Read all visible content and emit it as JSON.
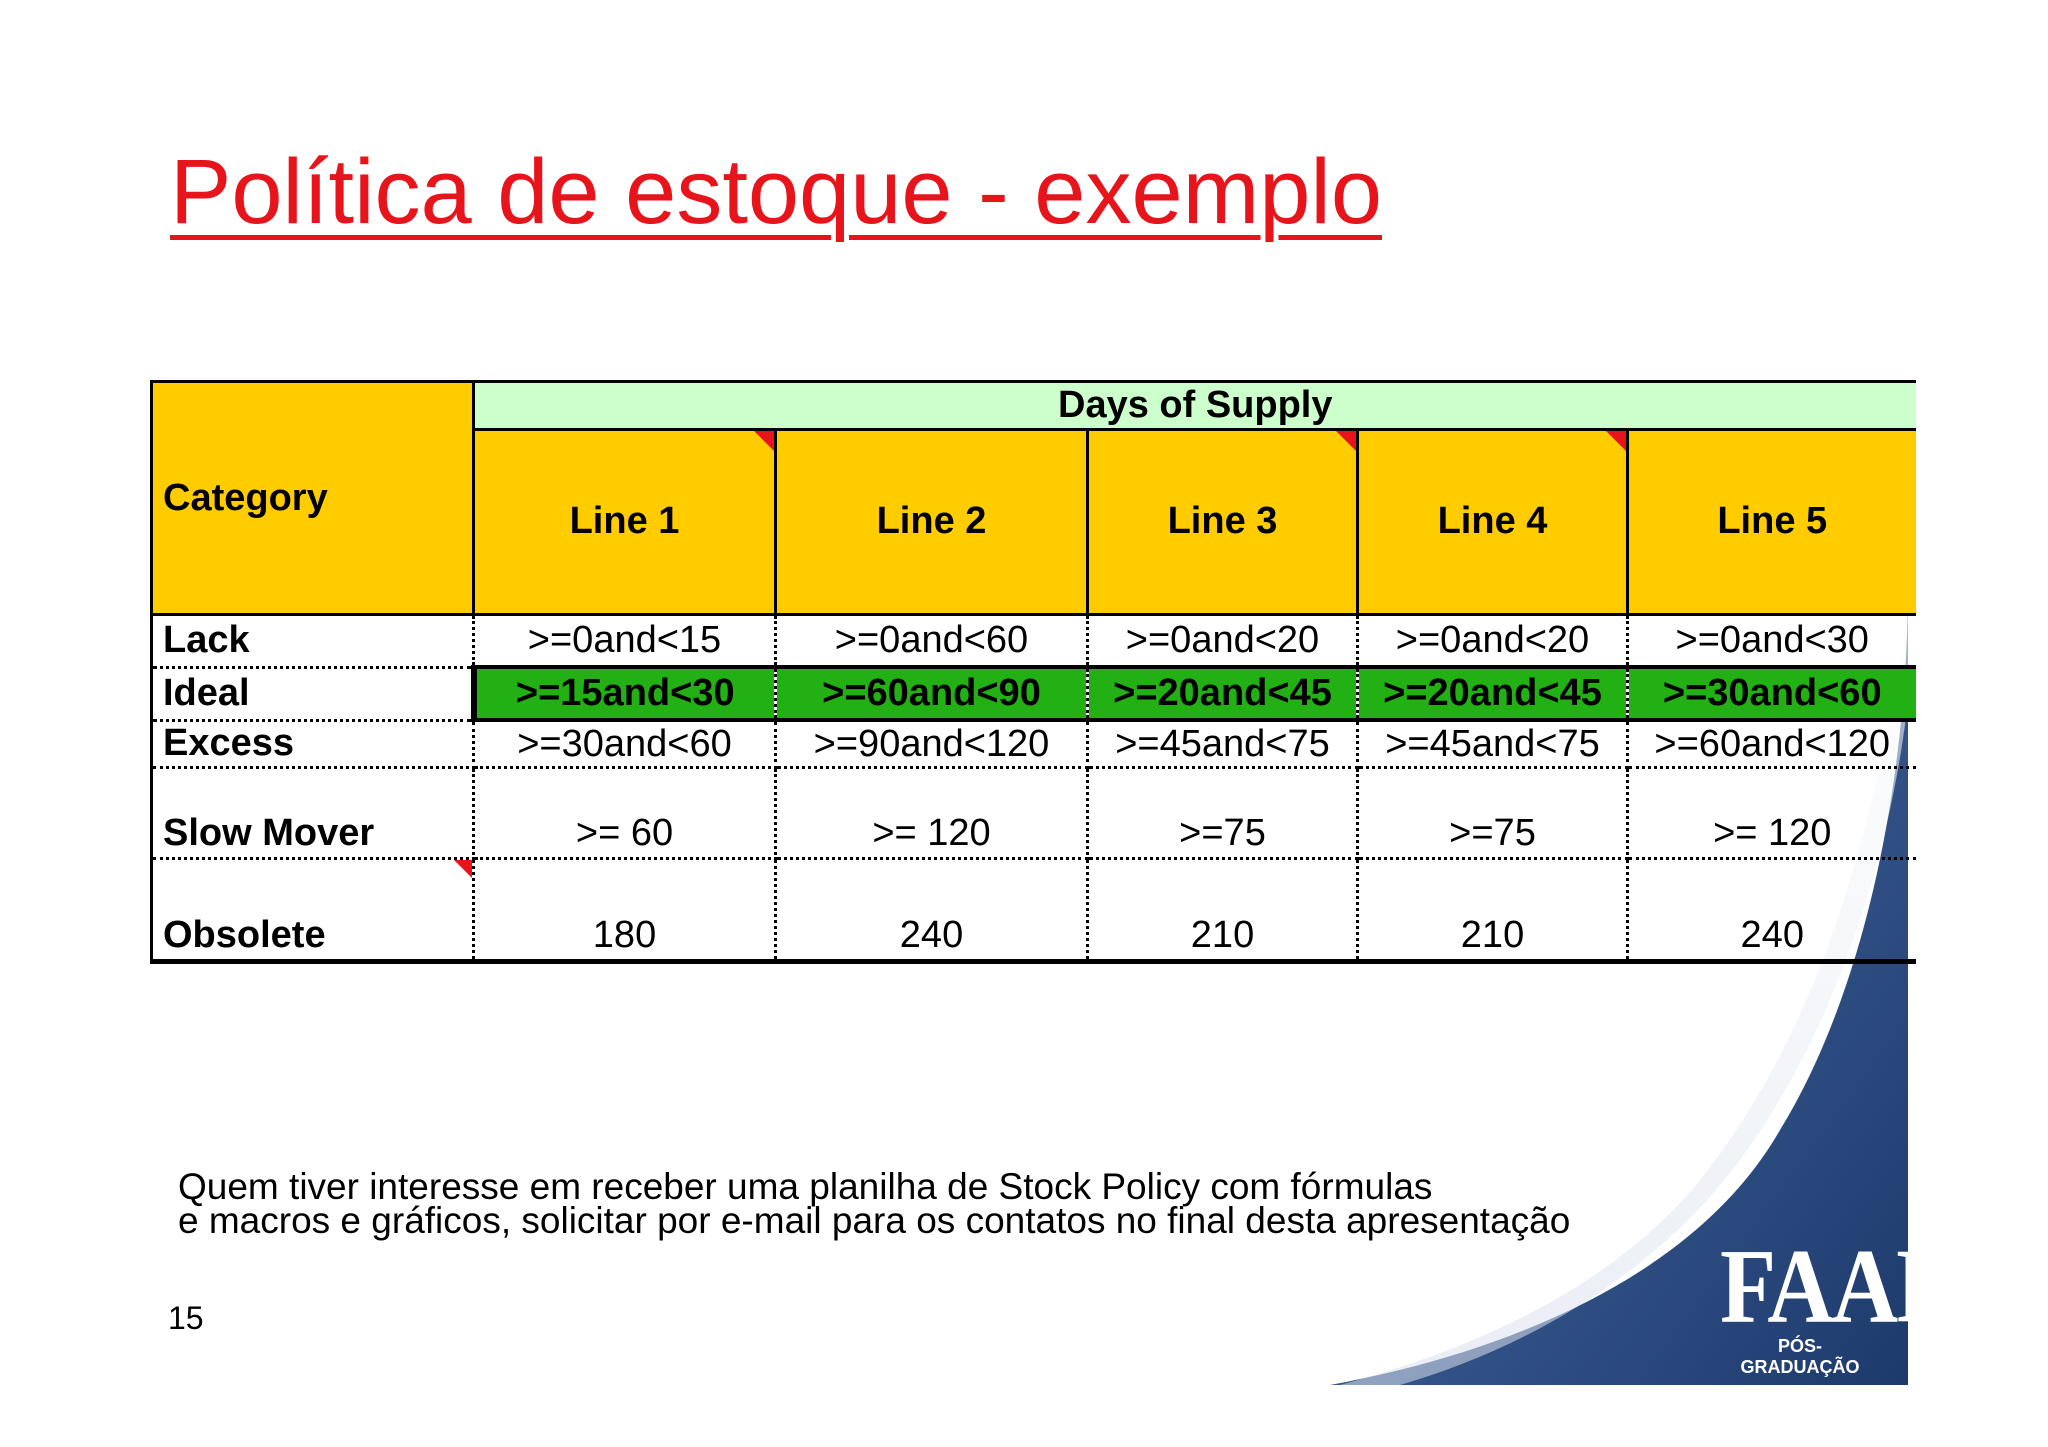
{
  "slide": {
    "title": "Política de estoque - exemplo",
    "page_number": "15",
    "footnote_lines": [
      "Quem tiver interesse em receber uma planilha de Stock Policy com fórmulas",
      "e macros e gráficos, solicitar por e-mail para os contatos no final desta apresentação"
    ],
    "logo": {
      "main": "FAAP",
      "sub": "PÓS-GRADUAÇÃO"
    },
    "colors": {
      "title": "#e8141b",
      "header_yellow": "#ffcc00",
      "header_green": "#ccffcc",
      "ideal_green": "#22b014",
      "brand_blue": "#2d4e86"
    }
  },
  "table": {
    "category_header": "Category",
    "group_header": "Days of Supply",
    "lines": [
      "Line 1",
      "Line 2",
      "Line 3",
      "Line 4",
      "Line 5"
    ],
    "rows": [
      {
        "label": "Lack",
        "values": [
          ">=0and<15",
          ">=0and<60",
          ">=0and<20",
          ">=0and<20",
          ">=0and<30"
        ]
      },
      {
        "label": "Ideal",
        "values": [
          ">=15and<30",
          ">=60and<90",
          ">=20and<45",
          ">=20and<45",
          ">=30and<60"
        ]
      },
      {
        "label": "Excess",
        "values": [
          ">=30and<60",
          ">=90and<120",
          ">=45and<75",
          ">=45and<75",
          ">=60and<120"
        ]
      },
      {
        "label": "Slow Mover",
        "values": [
          ">= 60",
          ">= 120",
          ">=75",
          ">=75",
          ">= 120"
        ]
      },
      {
        "label": "Obsolete",
        "values": [
          "180",
          "240",
          "210",
          "210",
          "240"
        ]
      }
    ]
  }
}
